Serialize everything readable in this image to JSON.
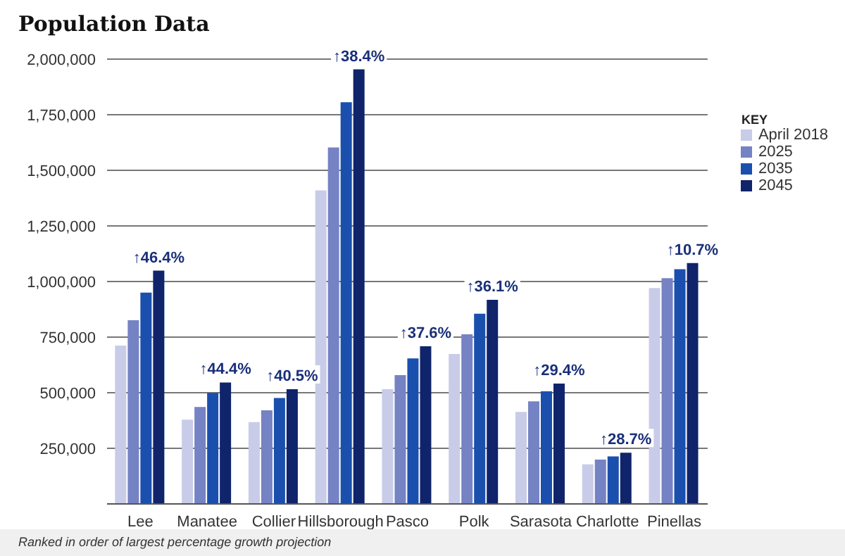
{
  "chart_data": {
    "type": "bar",
    "title": "Population Data",
    "categories": [
      "Lee",
      "Manatee",
      "Collier",
      "Hillsborough",
      "Pasco",
      "Polk",
      "Sarasota",
      "Charlotte",
      "Pinellas"
    ],
    "series": [
      {
        "name": "April 2018",
        "color": "#c8cce8",
        "values": [
          712000,
          379000,
          368000,
          1410000,
          516000,
          674000,
          414000,
          178000,
          971000
        ]
      },
      {
        "name": "2025",
        "color": "#7583c4",
        "values": [
          826000,
          436000,
          421000,
          1603000,
          579000,
          763000,
          461000,
          199000,
          1015000
        ]
      },
      {
        "name": "2035",
        "color": "#1a4fae",
        "values": [
          950000,
          499000,
          476000,
          1806000,
          654000,
          855000,
          506000,
          214000,
          1055000
        ]
      },
      {
        "name": "2045",
        "color": "#10246b",
        "values": [
          1049000,
          546000,
          516000,
          1954000,
          709000,
          918000,
          541000,
          230000,
          1083000
        ]
      }
    ],
    "ylim": [
      0,
      2000000
    ],
    "yticks": [
      {
        "value": 0,
        "label": null
      },
      {
        "value": 250000,
        "label": "250,000"
      },
      {
        "value": 500000,
        "label": "500,000"
      },
      {
        "value": 750000,
        "label": "750,000"
      },
      {
        "value": 1000000,
        "label": "1,000,000"
      },
      {
        "value": 1250000,
        "label": "1,250,000"
      },
      {
        "value": 1500000,
        "label": "1,500,000"
      },
      {
        "value": 1750000,
        "label": "1,750,000"
      },
      {
        "value": 2000000,
        "label": "2,000,000"
      }
    ],
    "grid": "y",
    "legend": "top right",
    "legend_title": "KEY",
    "annotations": [
      "↑46.4%",
      "↑44.4%",
      "↑40.5%",
      "↑38.4%",
      "↑37.6%",
      "↑36.1%",
      "↑29.4%",
      "↑28.7%",
      "↑10.7%",
      "Ranked in order of largest percentage growth projection"
    ]
  }
}
